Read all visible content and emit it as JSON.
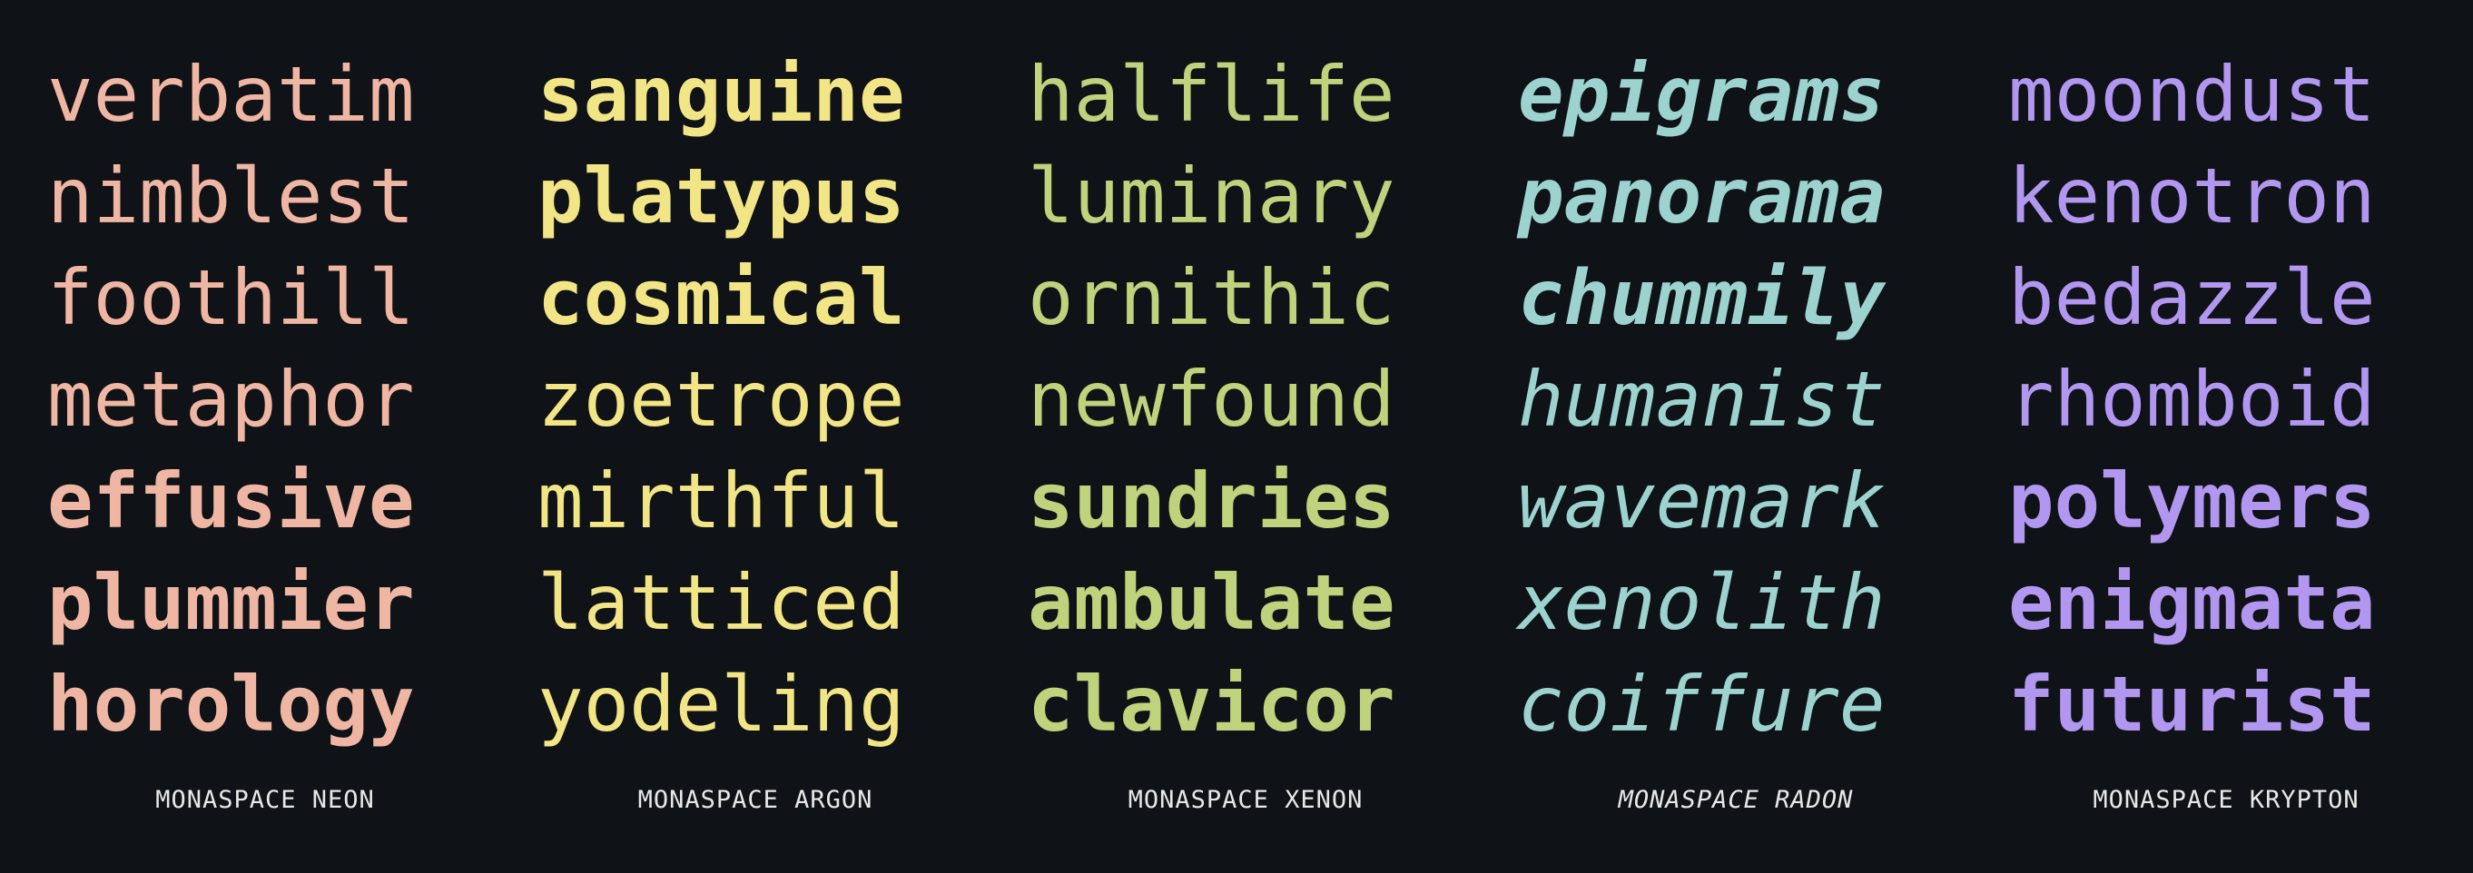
{
  "columns": [
    {
      "id": "neon",
      "label": "MONASPACE NEON",
      "color": "#efb6a3",
      "words": [
        "verbatim",
        "nimblest",
        "foothill",
        "metaphor",
        "effusive",
        "plummier",
        "horology"
      ]
    },
    {
      "id": "argon",
      "label": "MONASPACE ARGON",
      "color": "#f2e585",
      "words": [
        "sanguine",
        "platypus",
        "cosmical",
        "zoetrope",
        "mirthful",
        "latticed",
        "yodeling"
      ]
    },
    {
      "id": "xenon",
      "label": "MONASPACE XENON",
      "color": "#bfd27c",
      "words": [
        "halflife",
        "luminary",
        "ornithic",
        "newfound",
        "sundries",
        "ambulate",
        "clavicor"
      ]
    },
    {
      "id": "radon",
      "label": "MONASPACE RADON",
      "color": "#9cd3cf",
      "words": [
        "epigrams",
        "panorama",
        "chummily",
        "humanist",
        "wavemark",
        "xenolith",
        "coiffure"
      ]
    },
    {
      "id": "krypton",
      "label": "MONASPACE KRYPTON",
      "color": "#b297f0",
      "words": [
        "moondust",
        "kenotron",
        "bedazzle",
        "rhomboid",
        "polymers",
        "enigmata",
        "futurist"
      ]
    }
  ]
}
